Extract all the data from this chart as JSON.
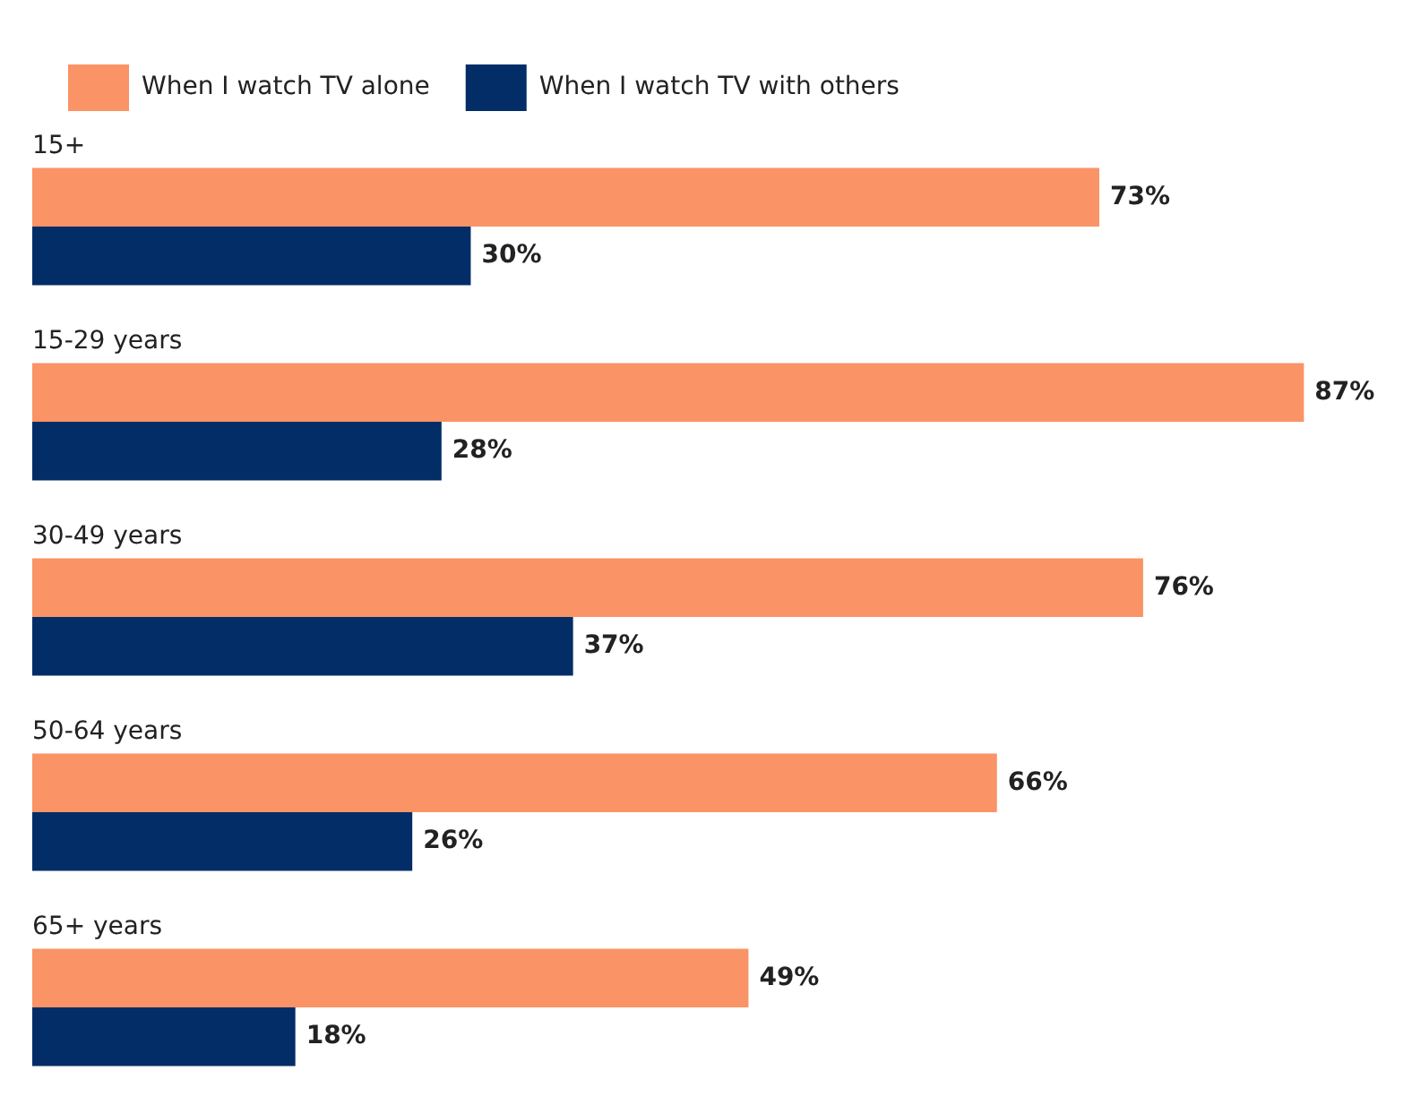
{
  "chart_data": {
    "type": "bar",
    "orientation": "horizontal",
    "categories": [
      "15+",
      "15-29 years",
      "30-49 years",
      "50-64 years",
      "65+ years"
    ],
    "series": [
      {
        "name": "When I watch TV alone",
        "color": "#fa9366",
        "values": [
          73,
          87,
          76,
          66,
          49
        ],
        "value_labels": [
          "73%",
          "87%",
          "76%",
          "66%",
          "49%"
        ]
      },
      {
        "name": "When I watch TV with others",
        "color": "#032d66",
        "values": [
          30,
          28,
          37,
          26,
          18
        ],
        "value_labels": [
          "30%",
          "28%",
          "37%",
          "26%",
          "18%"
        ]
      }
    ],
    "legend": "top left"
  }
}
